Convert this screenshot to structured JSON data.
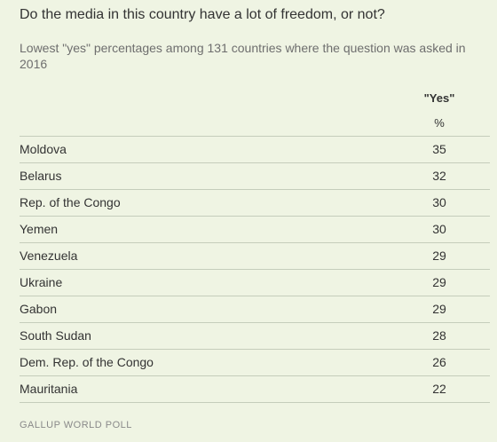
{
  "chart_data": {
    "type": "table",
    "title": "Do the media in this country have a lot of freedom, or not?",
    "subtitle": "Lowest \"yes\" percentages among 131 countries where the question was asked in 2016",
    "column_header": "\"Yes\"",
    "column_unit": "%",
    "categories": [
      "Moldova",
      "Belarus",
      "Rep. of the Congo",
      "Yemen",
      "Venezuela",
      "Ukraine",
      "Gabon",
      "South Sudan",
      "Dem. Rep. of the Congo",
      "Mauritania"
    ],
    "series": [
      {
        "name": "\"Yes\"",
        "values": [
          35,
          32,
          30,
          30,
          29,
          29,
          29,
          28,
          26,
          22
        ]
      }
    ],
    "source": "GALLUP WORLD POLL"
  }
}
